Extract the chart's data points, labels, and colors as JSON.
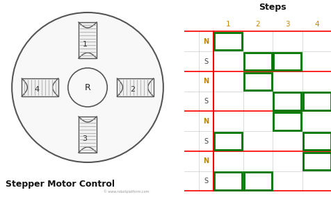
{
  "title": "Stepper Motor Control",
  "steps_label": "Steps",
  "step_numbers": [
    "1",
    "2",
    "3",
    "4"
  ],
  "pulses": [
    {
      "row": 0,
      "step": 0
    },
    {
      "row": 1,
      "step": 1
    },
    {
      "row": 1,
      "step": 2
    },
    {
      "row": 2,
      "step": 1
    },
    {
      "row": 3,
      "step": 2
    },
    {
      "row": 3,
      "step": 3
    },
    {
      "row": 4,
      "step": 2
    },
    {
      "row": 5,
      "step": 0
    },
    {
      "row": 5,
      "step": 3
    },
    {
      "row": 6,
      "step": 3
    },
    {
      "row": 7,
      "step": 0
    },
    {
      "row": 7,
      "step": 1
    }
  ],
  "grid_color": "#cccccc",
  "red_line_color": "#ff0000",
  "green_pulse_color": "#007700",
  "N_label_color": "#bb8800",
  "S_label_color": "#444444",
  "step_num_color": "#cc8800",
  "bg_color": "#ffffff",
  "motor_line_color": "#555555",
  "hatch_color": "#aaaaaa",
  "watermark": "© www.robotplatform.com",
  "figsize": [
    4.77,
    2.84
  ],
  "dpi": 100
}
